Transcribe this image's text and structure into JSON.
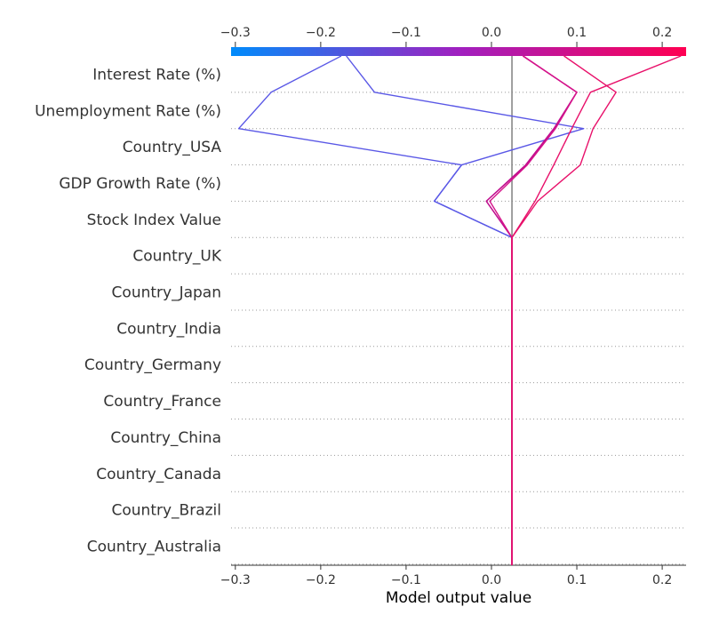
{
  "chart_data": {
    "type": "line",
    "subtype": "decision-plot",
    "xlabel": "Model output value",
    "xlim": [
      -0.305,
      0.228
    ],
    "x_ticks": [
      -0.3,
      -0.2,
      -0.1,
      0.0,
      0.1,
      0.2
    ],
    "x_tick_labels": [
      "−0.3",
      "−0.2",
      "−0.1",
      "0.0",
      "0.1",
      "0.2"
    ],
    "base_value": 0.024,
    "features": [
      "Interest Rate (%)",
      "Unemployment Rate (%)",
      "Country_USA",
      "GDP Growth Rate (%)",
      "Stock Index Value",
      "Country_UK",
      "Country_Japan",
      "Country_India",
      "Country_Germany",
      "Country_France",
      "Country_China",
      "Country_Canada",
      "Country_Brazil",
      "Country_Australia"
    ],
    "colorbar": {
      "low_color": "#008bfb",
      "mid_color": "#a020c0",
      "high_color": "#ff0052"
    },
    "series": [
      {
        "color": "#5a58e6",
        "values": [
          -0.17,
          -0.137,
          0.108,
          -0.035,
          -0.067,
          0.024
        ]
      },
      {
        "color": "#5a58e6",
        "values": [
          -0.176,
          -0.258,
          -0.296,
          -0.035,
          -0.067,
          0.024
        ]
      },
      {
        "color": "#c01090",
        "values": [
          0.037,
          0.1,
          0.073,
          0.04,
          -0.006,
          0.024
        ]
      },
      {
        "color": "#c01090",
        "values": [
          0.037,
          0.1,
          0.074,
          0.041,
          -0.006,
          0.024
        ]
      },
      {
        "color": "#d6148a",
        "values": [
          0.037,
          0.1,
          0.075,
          0.042,
          -0.002,
          0.024
        ]
      },
      {
        "color": "#e8106a",
        "values": [
          0.085,
          0.146,
          0.119,
          0.104,
          0.054,
          0.024
        ]
      },
      {
        "color": "#e8106a",
        "values": [
          0.222,
          0.116,
          0.094,
          0.073,
          0.051,
          0.024
        ]
      }
    ]
  }
}
